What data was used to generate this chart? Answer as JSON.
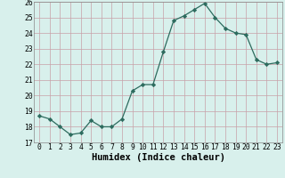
{
  "x": [
    0,
    1,
    2,
    3,
    4,
    5,
    6,
    7,
    8,
    9,
    10,
    11,
    12,
    13,
    14,
    15,
    16,
    17,
    18,
    19,
    20,
    21,
    22,
    23
  ],
  "y": [
    18.7,
    18.5,
    18.0,
    17.5,
    17.6,
    18.4,
    18.0,
    18.0,
    18.5,
    20.3,
    20.7,
    20.7,
    22.8,
    24.8,
    25.1,
    25.5,
    25.9,
    25.0,
    24.3,
    24.0,
    23.9,
    22.3,
    22.0,
    22.1
  ],
  "line_color": "#2d6b5e",
  "marker": "D",
  "marker_size": 2.2,
  "bg_color": "#d8f0ec",
  "grid_color": "#c8a0a8",
  "xlabel": "Humidex (Indice chaleur)",
  "ylim": [
    17,
    26
  ],
  "xlim": [
    -0.5,
    23.5
  ],
  "yticks": [
    17,
    18,
    19,
    20,
    21,
    22,
    23,
    24,
    25,
    26
  ],
  "xticks": [
    0,
    1,
    2,
    3,
    4,
    5,
    6,
    7,
    8,
    9,
    10,
    11,
    12,
    13,
    14,
    15,
    16,
    17,
    18,
    19,
    20,
    21,
    22,
    23
  ],
  "tick_fontsize": 5.8,
  "xlabel_fontsize": 7.5,
  "xlabel_fontweight": "bold"
}
